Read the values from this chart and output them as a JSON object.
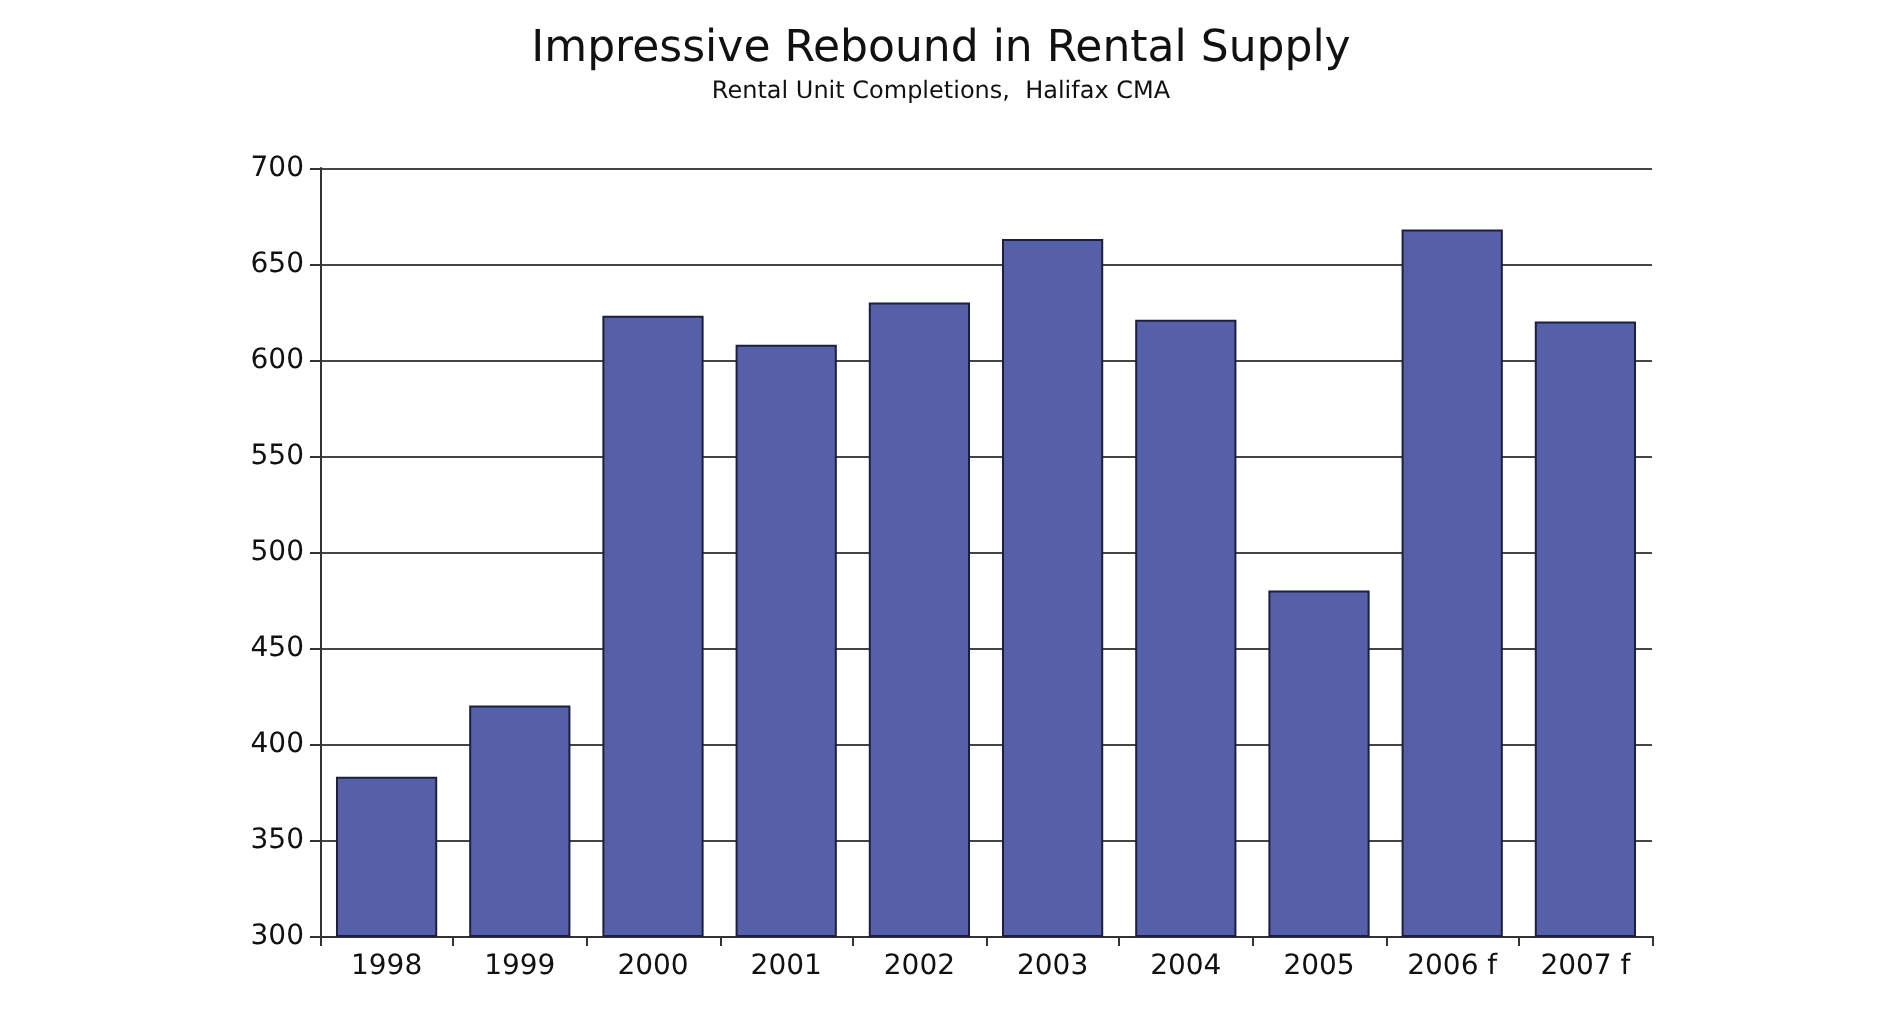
{
  "chart_data": {
    "type": "bar",
    "title": "Impressive Rebound in Rental Supply",
    "subtitle": "Rental Unit Completions,  Halifax CMA",
    "categories": [
      "1998",
      "1999",
      "2000",
      "2001",
      "2002",
      "2003",
      "2004",
      "2005",
      "2006 f",
      "2007 f"
    ],
    "values": [
      383,
      420,
      623,
      608,
      630,
      663,
      621,
      480,
      668,
      620
    ],
    "color": "#5560a8",
    "ylim": [
      300,
      700
    ],
    "yticks": [
      300,
      350,
      400,
      450,
      500,
      550,
      600,
      650,
      700
    ],
    "grid": "y"
  }
}
